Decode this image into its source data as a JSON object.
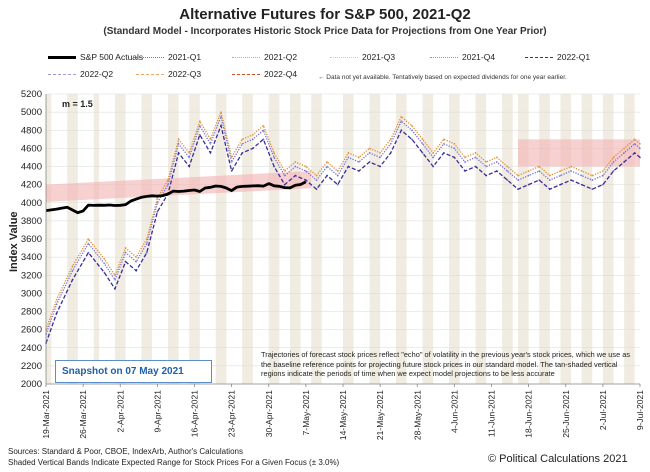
{
  "title": "Alternative Futures for S&P 500, 2021-Q2",
  "subtitle": "(Standard Model - Incorporates Historic Stock Price Data for Projections from One Year Prior)",
  "legend": {
    "items": [
      {
        "label": "S&P 500 Actuals",
        "color": "#000000",
        "style": "solid-thick"
      },
      {
        "label": "2021-Q1",
        "color": "#6f6fd6",
        "style": "dotted"
      },
      {
        "label": "2021-Q2",
        "color": "#b0b0b0",
        "style": "dotted"
      },
      {
        "label": "2021-Q3",
        "color": "#f0c27a",
        "style": "dotted"
      },
      {
        "label": "2021-Q4",
        "color": "#e08a2a",
        "style": "dotted"
      },
      {
        "label": "2022-Q1",
        "color": "#3a2d9a",
        "style": "dashed"
      },
      {
        "label": "2022-Q2",
        "color": "#a797d6",
        "style": "dashed"
      },
      {
        "label": "2022-Q3",
        "color": "#f3a862",
        "style": "dashed"
      },
      {
        "label": "2022-Q4",
        "color": "#c9511d",
        "style": "dashed"
      }
    ],
    "note": "← Data not yet available. Tentatively based on expected dividends for one year earlier."
  },
  "m_label": "m = 1.5",
  "snapshot": "Snapshot on 07 May 2021",
  "annotation": "Trajectories of forecast stock prices reflect \"echo\" of volatility in the previous year's stock prices, which we use as the baseline reference points for projecting future stock prices in our standard model. The tan-shaded vertical regions indicate the periods of time when we expect model projections to be less accurate",
  "footer": {
    "sources": "Sources: Standard & Poor, CBOE, IndexArb, Author's Calculations",
    "bands_note": "Shaded Vertical Bands Indicate Expected Range for Stock Prices For a Given Focus (± 3.0%)",
    "copyright": "© Political Calculations 2021"
  },
  "chart_data": {
    "type": "line",
    "title": "Alternative Futures for S&P 500, 2021-Q2",
    "xlabel": "",
    "ylabel": "Index Value",
    "ylim": [
      2000,
      5200
    ],
    "yticks": [
      2000,
      2200,
      2400,
      2600,
      2800,
      3000,
      3200,
      3400,
      3600,
      3800,
      4000,
      4200,
      4400,
      4600,
      4800,
      5000,
      5200
    ],
    "xrange_days": [
      0,
      112
    ],
    "xtick_labels": [
      "19-Mar-2021",
      "26-Mar-2021",
      "2-Apr-2021",
      "9-Apr-2021",
      "16-Apr-2021",
      "23-Apr-2021",
      "30-Apr-2021",
      "7-May-2021",
      "14-May-2021",
      "21-May-2021",
      "28-May-2021",
      "4-Jun-2021",
      "11-Jun-2021",
      "18-Jun-2021",
      "25-Jun-2021",
      "2-Jul-2021",
      "9-Jul-2021"
    ],
    "actuals": {
      "name": "S&P 500 Actuals",
      "x": [
        0,
        1,
        2,
        3,
        4,
        5,
        6,
        7,
        8,
        9,
        10,
        11,
        12,
        13,
        14,
        15,
        16,
        17,
        18,
        19,
        20,
        21,
        22,
        23,
        24,
        25,
        26,
        27,
        28,
        29,
        30,
        31,
        32,
        33,
        34,
        35,
        36,
        37,
        38,
        39,
        40,
        41,
        42,
        43,
        44,
        45,
        46,
        47,
        48,
        49
      ],
      "values": [
        3913,
        3921,
        3930,
        3941,
        3950,
        3920,
        3890,
        3910,
        3974,
        3971,
        3973,
        3972,
        3975,
        3970,
        3972,
        3980,
        4019,
        4040,
        4060,
        4070,
        4077,
        4073,
        4079,
        4097,
        4128,
        4124,
        4128,
        4135,
        4141,
        4124,
        4163,
        4170,
        4185,
        4180,
        4163,
        4134,
        4173,
        4180,
        4183,
        4186,
        4188,
        4184,
        4211,
        4187,
        4181,
        4167,
        4164,
        4192,
        4201,
        4232
      ]
    },
    "model_series": [
      {
        "name": "2022-Q1",
        "x": [
          0,
          2,
          5,
          8,
          11,
          13,
          15,
          17,
          19,
          21,
          23,
          25,
          27,
          29,
          31,
          33,
          35,
          37,
          39,
          41,
          43,
          45,
          47,
          49,
          51,
          53,
          55,
          57,
          59,
          61,
          63,
          65,
          67,
          69,
          71,
          73,
          75,
          77,
          79,
          81,
          83,
          85,
          87,
          89,
          91,
          93,
          95,
          97,
          99,
          101,
          103,
          105,
          107,
          109,
          111,
          112
        ],
        "values": [
          2450,
          2780,
          3150,
          3450,
          3230,
          3050,
          3350,
          3250,
          3450,
          3900,
          4100,
          4550,
          4400,
          4750,
          4550,
          4850,
          4350,
          4550,
          4600,
          4700,
          4400,
          4200,
          4300,
          4250,
          4150,
          4300,
          4200,
          4400,
          4350,
          4450,
          4400,
          4550,
          4800,
          4700,
          4550,
          4400,
          4550,
          4500,
          4350,
          4400,
          4300,
          4350,
          4250,
          4150,
          4200,
          4250,
          4150,
          4200,
          4250,
          4200,
          4150,
          4200,
          4350,
          4450,
          4550,
          4500
        ]
      },
      {
        "name": "2021-Q1",
        "x": [
          0,
          2,
          5,
          8,
          11,
          13,
          15,
          17,
          19,
          21,
          23,
          25,
          27,
          29,
          31,
          33,
          35,
          37,
          39,
          41,
          43,
          45,
          47,
          49,
          51,
          53,
          55,
          57,
          59,
          61,
          63,
          65,
          67,
          69,
          71,
          73,
          75,
          77,
          79,
          81,
          83,
          85,
          87,
          89,
          91,
          93,
          95,
          97,
          99,
          101,
          103,
          105,
          107,
          109,
          111,
          112
        ],
        "values": [
          2550,
          2880,
          3250,
          3550,
          3330,
          3150,
          3450,
          3350,
          3550,
          4000,
          4200,
          4650,
          4500,
          4850,
          4650,
          4950,
          4450,
          4650,
          4700,
          4800,
          4500,
          4300,
          4400,
          4350,
          4250,
          4400,
          4300,
          4500,
          4450,
          4550,
          4500,
          4650,
          4900,
          4800,
          4650,
          4500,
          4650,
          4600,
          4450,
          4500,
          4400,
          4450,
          4350,
          4250,
          4300,
          4350,
          4250,
          4300,
          4350,
          4300,
          4250,
          4300,
          4450,
          4550,
          4650,
          4600
        ]
      },
      {
        "name": "2021-Q4",
        "x": [
          0,
          2,
          5,
          8,
          11,
          13,
          15,
          17,
          19,
          21,
          23,
          25,
          27,
          29,
          31,
          33,
          35,
          37,
          39,
          41,
          43,
          45,
          47,
          49,
          51,
          53,
          55,
          57,
          59,
          61,
          63,
          65,
          67,
          69,
          71,
          73,
          75,
          77,
          79,
          81,
          83,
          85,
          87,
          89,
          91,
          93,
          95,
          97,
          99,
          101,
          103,
          105,
          107,
          109,
          111,
          112
        ],
        "values": [
          2600,
          2930,
          3300,
          3600,
          3380,
          3200,
          3500,
          3400,
          3600,
          4050,
          4250,
          4700,
          4550,
          4900,
          4700,
          5000,
          4500,
          4700,
          4750,
          4850,
          4550,
          4350,
          4450,
          4400,
          4300,
          4450,
          4350,
          4550,
          4500,
          4600,
          4550,
          4700,
          4950,
          4850,
          4700,
          4550,
          4700,
          4650,
          4500,
          4550,
          4450,
          4500,
          4400,
          4300,
          4350,
          4400,
          4300,
          4350,
          4400,
          4350,
          4300,
          4350,
          4500,
          4600,
          4700,
          4650
        ]
      }
    ],
    "range_band": {
      "x": [
        0,
        10,
        20,
        30,
        40,
        50
      ],
      "low": [
        4010,
        4040,
        4070,
        4100,
        4130,
        4160
      ],
      "high": [
        4200,
        4230,
        4260,
        4290,
        4320,
        4350
      ]
    },
    "range_band_2": {
      "x": [
        89,
        112
      ],
      "low": [
        4400,
        4400
      ],
      "high": [
        4700,
        4700
      ]
    },
    "vertical_bands": [
      [
        -1,
        1
      ],
      [
        4,
        6
      ],
      [
        9,
        10
      ],
      [
        13,
        15
      ],
      [
        18,
        20
      ],
      [
        23,
        25
      ],
      [
        27,
        29
      ],
      [
        32,
        34
      ],
      [
        37,
        39
      ],
      [
        42,
        44
      ],
      [
        46,
        48
      ],
      [
        50,
        52
      ],
      [
        56,
        58
      ],
      [
        61,
        63
      ],
      [
        66,
        68
      ],
      [
        71,
        73
      ],
      [
        76,
        78
      ],
      [
        81,
        83
      ],
      [
        86,
        88
      ],
      [
        89,
        91
      ],
      [
        93,
        95
      ],
      [
        97,
        99
      ],
      [
        101,
        103
      ],
      [
        105,
        107
      ],
      [
        109,
        111
      ]
    ]
  }
}
